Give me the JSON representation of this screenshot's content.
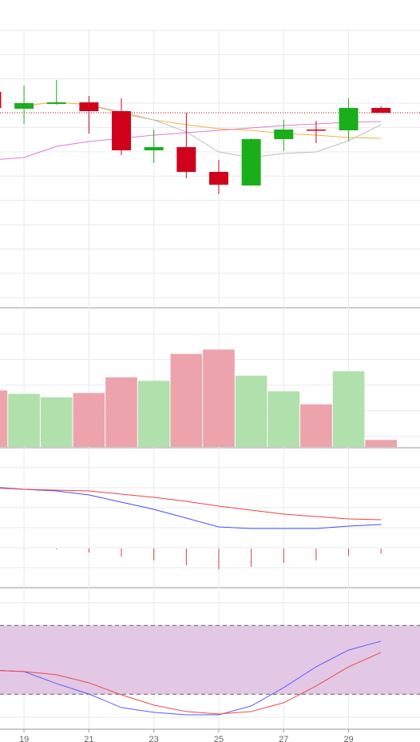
{
  "chart_data": [
    {
      "type": "candlestick",
      "x": [
        18,
        19,
        20,
        21,
        22,
        23,
        24,
        25,
        26,
        27,
        28,
        29,
        30
      ],
      "xlim": [
        18.26,
        31.2
      ],
      "ylim": [
        0,
        385
      ],
      "open": [
        270,
        249,
        255,
        257,
        246,
        197,
        201,
        170,
        153,
        211,
        223,
        222,
        250
      ],
      "high": [
        275,
        278,
        285,
        265,
        262,
        223,
        244,
        185,
        212,
        235,
        234,
        262,
        252
      ],
      "low": [
        245,
        230,
        254,
        218,
        191,
        181,
        162,
        142,
        153,
        196,
        206,
        209,
        244
      ],
      "close": [
        250,
        256,
        257,
        246,
        197,
        201,
        170,
        154,
        211,
        223,
        222,
        250,
        244
      ],
      "up_color": "#1aaf1a",
      "down_color": "#d0021b",
      "series": [
        {
          "color": "#f5b041",
          "values": [
            null,
            253,
            257,
            254,
            243,
            235,
            229,
            224,
            222,
            218,
            216,
            213,
            212
          ]
        },
        {
          "color": "#bdbdbd",
          "values": [
            null,
            null,
            null,
            254,
            245,
            235,
            220,
            195,
            188,
            193,
            195,
            209,
            229
          ]
        },
        {
          "color": "#e07bd0",
          "values": [
            185,
            188,
            202,
            208,
            212,
            216,
            219,
            222,
            225,
            228,
            230,
            232,
            233
          ]
        }
      ],
      "reference_line": 244,
      "reference_color": "#a00000"
    },
    {
      "type": "bar",
      "x": [
        18,
        19,
        20,
        21,
        22,
        23,
        24,
        25,
        26,
        27,
        28,
        29,
        30
      ],
      "xlim": [
        18.26,
        31.2
      ],
      "ylim": [
        0,
        161
      ],
      "values": [
        66,
        62,
        58,
        63,
        81,
        77,
        108,
        113,
        83,
        65,
        50,
        88,
        9
      ],
      "up_color": "#b0e0ab",
      "down_color": "#eda3ab"
    },
    {
      "type": "line",
      "x": [
        18,
        19,
        20,
        21,
        22,
        23,
        24,
        25,
        26,
        27,
        28,
        29,
        30
      ],
      "xlim": [
        18.26,
        31.2
      ],
      "ylim": [
        -49,
        126
      ],
      "series": [
        {
          "color": "#4a4aff",
          "values": [
            77,
            74,
            72,
            67,
            58,
            49,
            38,
            27,
            25,
            25,
            25,
            28,
            30
          ]
        },
        {
          "color": "#f04040",
          "values": [
            76,
            74,
            73,
            72,
            68,
            64,
            59,
            53,
            48,
            43,
            40,
            37,
            36
          ]
        }
      ],
      "histogram": {
        "color": "#d04040",
        "values": [
          1,
          0,
          -1,
          -5,
          -10,
          -15,
          -21,
          -26,
          -23,
          -18,
          -15,
          -9,
          -6
        ]
      }
    },
    {
      "type": "line",
      "x": [
        18,
        19,
        20,
        21,
        22,
        23,
        24,
        25,
        26,
        27,
        28,
        29,
        30
      ],
      "xlim": [
        18.26,
        31.2
      ],
      "ylim": [
        -10.5,
        113
      ],
      "xticks": [
        19,
        21,
        23,
        25,
        27,
        29
      ],
      "band": [
        20,
        80
      ],
      "band_color": "#e3c8e6",
      "series": [
        {
          "color": "#5a5aff",
          "values": [
            41,
            39.8,
            29.3,
            20.2,
            8.4,
            4.2,
            2.1,
            2.1,
            9.8,
            25.8,
            44,
            58.6,
            66.3
          ]
        },
        {
          "color": "#f04848",
          "values": [
            41,
            39.8,
            37,
            30,
            19.5,
            10.5,
            4.9,
            2.8,
            4.9,
            12.6,
            27.2,
            44,
            56.5
          ]
        }
      ]
    }
  ]
}
